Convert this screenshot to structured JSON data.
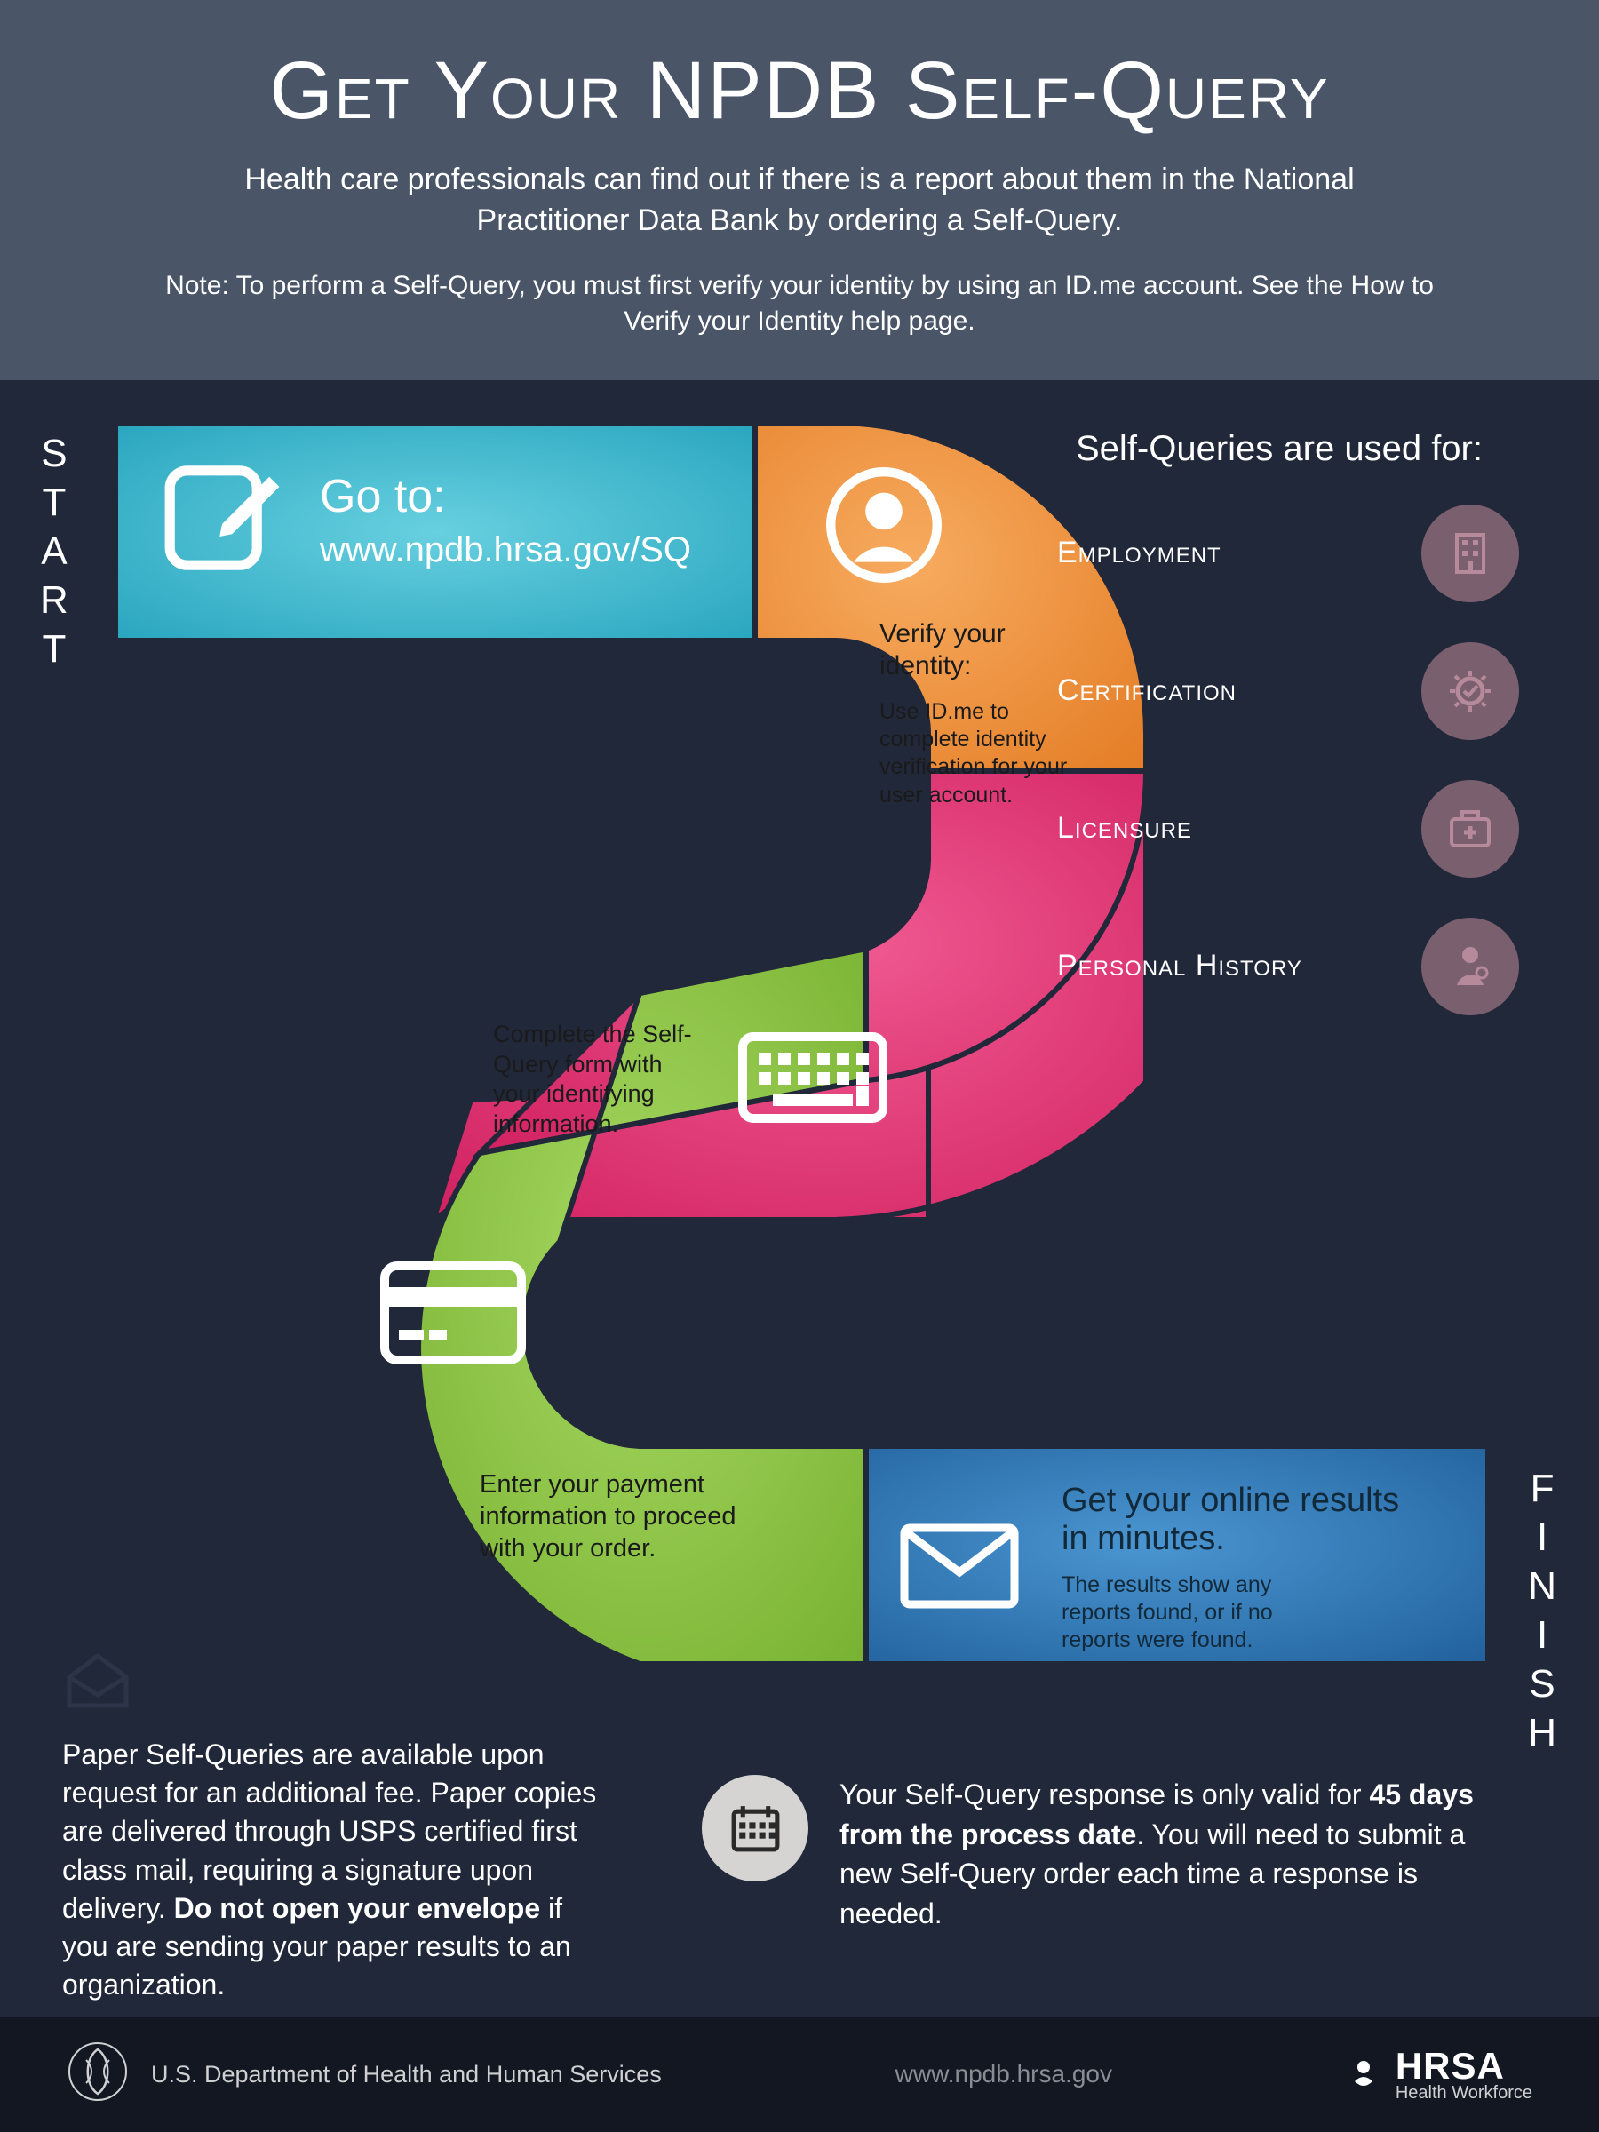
{
  "header": {
    "title": "Get Your NPDB Self-Query",
    "subtitle": "Health care professionals can find out if there is a report about them in the National Practitioner Data Bank by ordering a Self-Query.",
    "note": "Note: To perform a Self-Query, you must first verify your identity by using an ID.me account. See the How to Verify your Identity help page."
  },
  "labels": {
    "start": "START",
    "finish": "FINISH"
  },
  "colors": {
    "bg": "#21283a",
    "header": "#4a5568",
    "seg_start": "#35b6cd",
    "seg_verify": "#f0923b",
    "seg_form": "#e73474",
    "seg_pay": "#8bc63e",
    "seg_results": "#2e77b8",
    "use_circle": "#7a5f6e",
    "use_icon": "#b78a9b",
    "footer": "#121722",
    "stroke": "#21283a"
  },
  "steps": {
    "start": {
      "icon": "edit-note-icon",
      "title": "Go to:",
      "url": "www.npdb.hrsa.gov/SQ"
    },
    "verify": {
      "icon": "person-icon",
      "title": "Verify your identity:",
      "body": "Use ID.me to complete identity verification for your user account."
    },
    "form": {
      "icon": "keyboard-icon",
      "body": "Complete the Self-Query form with your identifying information."
    },
    "payment": {
      "icon": "card-icon",
      "body": "Enter your payment information to proceed with your order."
    },
    "results": {
      "icon": "envelope-icon",
      "title": "Get your online results in minutes.",
      "body": "The results show any reports found, or if no reports were found."
    }
  },
  "uses": {
    "heading": "Self-Queries are used for:",
    "items": [
      {
        "label": "Employment",
        "icon": "building-icon"
      },
      {
        "label": "Certification",
        "icon": "seal-icon"
      },
      {
        "label": "Licensure",
        "icon": "medkit-icon"
      },
      {
        "label": "Personal History",
        "icon": "doctor-icon"
      }
    ]
  },
  "paper_note": {
    "icon": "open-envelope-icon",
    "text_before": "Paper Self-Queries are available upon request for an additional fee. Paper copies are delivered through USPS certified first class mail, requiring a signature upon delivery. ",
    "text_bold": "Do not open your envelope",
    "text_after": " if you are sending your paper results to an organization."
  },
  "validity_note": {
    "icon": "calendar-icon",
    "text_before": "Your Self-Query response is only valid for ",
    "text_bold": "45 days from the process date",
    "text_after": ". You will need to submit a new Self-Query order each time a response is needed."
  },
  "footer": {
    "dept": "U.S. Department of Health and Human Services",
    "url": "www.npdb.hrsa.gov",
    "brand": "HRSA",
    "brand_sub": "Health Workforce"
  }
}
